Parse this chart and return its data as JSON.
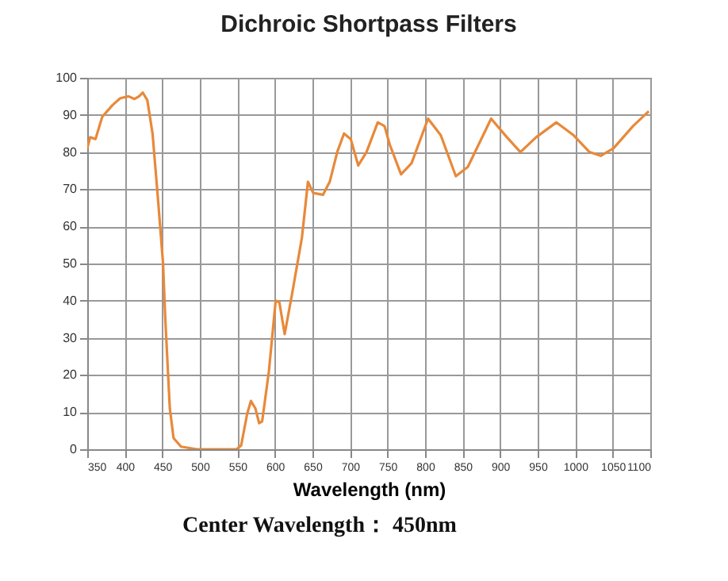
{
  "chart_data": {
    "type": "line",
    "title": "Dichroic Shortpass Filters",
    "xlabel": "Wavelength (nm)",
    "annotations": [
      "Center Wavelength： 450nm"
    ],
    "series": [
      {
        "color": "#e8893a",
        "x": [
          350,
          354,
          361,
          370,
          384,
          394,
          405,
          413,
          419,
          424,
          430,
          437,
          444,
          451,
          454,
          460,
          465,
          475,
          496,
          549,
          555,
          563,
          568,
          574,
          579,
          583,
          592,
          601,
          606,
          613,
          623,
          636,
          644,
          651,
          664,
          673,
          683,
          692,
          701,
          711,
          722,
          737,
          746,
          753,
          768,
          782,
          804,
          821,
          841,
          857,
          888,
          909,
          927,
          948,
          975,
          998,
          1019,
          1034,
          1051,
          1077,
          1098
        ],
        "values": [
          81,
          84,
          83.5,
          89.5,
          92.7,
          94.5,
          95,
          94.3,
          95,
          96,
          94,
          85,
          68,
          50,
          35,
          11,
          3,
          0.7,
          0,
          0,
          1,
          9.5,
          13,
          11,
          7,
          7.5,
          21,
          40,
          39.5,
          31,
          42,
          57,
          72,
          69,
          68.5,
          72,
          80,
          85,
          83.5,
          76.4,
          80,
          88,
          87,
          82,
          74,
          77,
          89,
          84.5,
          73.5,
          76,
          89,
          84,
          80,
          84,
          88,
          84.5,
          80,
          79,
          81,
          87,
          91
        ]
      }
    ],
    "xlim": [
      350,
      1100
    ],
    "xticks": [
      350,
      400,
      450,
      500,
      550,
      600,
      650,
      700,
      750,
      800,
      850,
      900,
      950,
      1000,
      1050,
      1100
    ],
    "ylim": [
      0,
      100
    ],
    "yticks": [
      0,
      10,
      20,
      30,
      40,
      50,
      60,
      70,
      80,
      90,
      100
    ],
    "grid": true,
    "marker": "none",
    "line_style": "solid"
  }
}
